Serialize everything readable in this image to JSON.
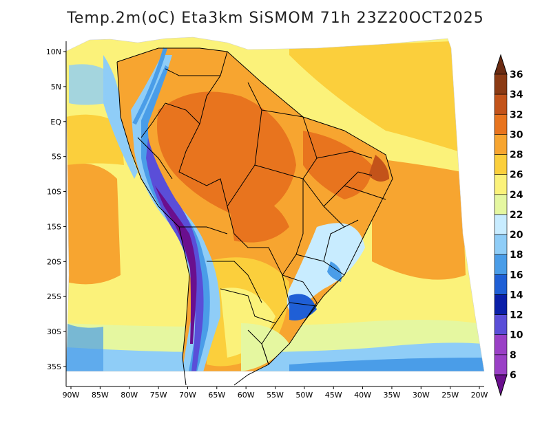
{
  "title": "Temp.2m(oC) Eta3km SiSMOM 71h 23Z20OCT2025",
  "map": {
    "lon_ticks": [
      "90W",
      "85W",
      "80W",
      "75W",
      "70W",
      "65W",
      "60W",
      "55W",
      "50W",
      "45W",
      "40W",
      "35W",
      "30W",
      "25W",
      "20W"
    ],
    "lat_ticks": [
      "10N",
      "5N",
      "EQ",
      "5S",
      "10S",
      "15S",
      "20S",
      "25S",
      "30S",
      "35S"
    ]
  },
  "colorbar": {
    "labels": [
      "36",
      "34",
      "32",
      "30",
      "28",
      "26",
      "24",
      "22",
      "20",
      "18",
      "16",
      "14",
      "12",
      "10",
      "8",
      "6"
    ],
    "colors": [
      "#6b2b12",
      "#8b3a14",
      "#c3531a",
      "#e8741e",
      "#f7a530",
      "#fbcf3c",
      "#fbf27a",
      "#e5f7a0",
      "#c8ecff",
      "#8fcdf7",
      "#4a9de8",
      "#1f5fd6",
      "#0a1fa8",
      "#5a4ed8",
      "#9a40c6",
      "#6a0f8e"
    ]
  }
}
